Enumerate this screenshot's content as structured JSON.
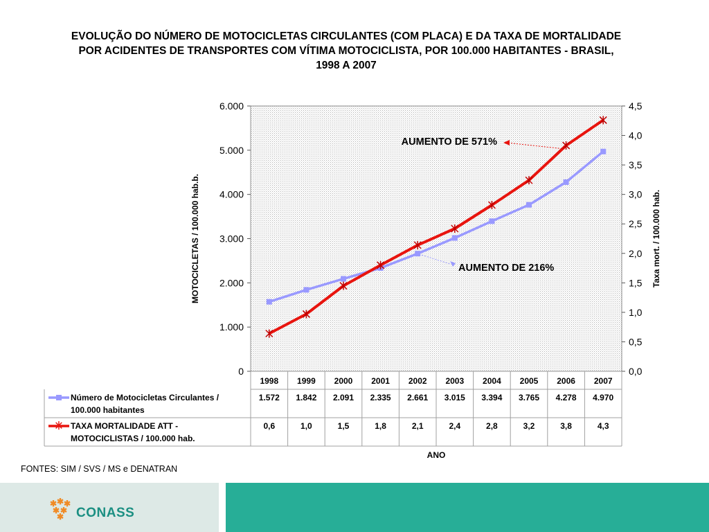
{
  "title": "EVOLUÇÃO DO NÚMERO DE MOTOCICLETAS CIRCULANTES (COM PLACA) E DA TAXA DE MORTALIDADE POR ACIDENTES DE TRANSPORTES COM VÍTIMA MOTOCICLISTA, POR 100.000 HABITANTES - BRASIL, 1998 A 2007",
  "source": "FONTES: SIM / SVS / MS e DENATRAN",
  "logo": {
    "text": "CONASS"
  },
  "colors": {
    "motorcycles": "#9999ff",
    "mortality": "#e8140e",
    "footer_left": "#dde9e6",
    "footer_right": "#27ae97",
    "logo": "#1b8f82",
    "logo_mark": "#f08a24"
  },
  "chart_data": {
    "type": "line",
    "dual_axis": true,
    "grid": false,
    "plot_area_fill": "dotted gray",
    "legend_placement": "data-table",
    "x": [
      "1998",
      "1999",
      "2000",
      "2001",
      "2002",
      "2003",
      "2004",
      "2005",
      "2006",
      "2007"
    ],
    "xlabel": "ANO",
    "ylabel_left": "MOTOCICLETAS / 100.000 hab.b.",
    "ylabel_right": "Taxa mort. / 100.000 hab.",
    "ylim_left": [
      0,
      6000
    ],
    "ylim_right": [
      0,
      4.5
    ],
    "yticks_left": [
      "0",
      "1.000",
      "2.000",
      "3.000",
      "4.000",
      "5.000",
      "6.000"
    ],
    "yticks_right": [
      "0,0",
      "0,5",
      "1,0",
      "1,5",
      "2,0",
      "2,5",
      "3,0",
      "3,5",
      "4,0",
      "4,5"
    ],
    "series": [
      {
        "name": "Número de Motocicletas Circulantes / 100.000 habitantes",
        "name_lines": [
          "Número de Motocicletas Circulantes /",
          "100.000 habitantes"
        ],
        "axis": "left",
        "marker": "square",
        "color": "#9999ff",
        "values": [
          1572,
          1842,
          2091,
          2335,
          2661,
          3015,
          3394,
          3765,
          4278,
          4970
        ],
        "labels": [
          "1.572",
          "1.842",
          "2.091",
          "2.335",
          "2.661",
          "3.015",
          "3.394",
          "3.765",
          "4.278",
          "4.970"
        ]
      },
      {
        "name": "TAXA MORTALIDADE ATT - MOTOCICLISTAS / 100.000 hab.",
        "name_lines": [
          "TAXA MORTALIDADE ATT -",
          "MOTOCICLISTAS / 100.000 hab."
        ],
        "axis": "right",
        "marker": "asterisk",
        "color": "#e8140e",
        "values": [
          0.64,
          0.97,
          1.45,
          1.8,
          2.14,
          2.42,
          2.82,
          3.24,
          3.83,
          4.26
        ],
        "labels": [
          "0,6",
          "1,0",
          "1,5",
          "1,8",
          "2,1",
          "2,4",
          "2,8",
          "3,2",
          "3,8",
          "4,3"
        ]
      }
    ],
    "annotations": [
      {
        "text": "AUMENTO DE 571%",
        "series": 1,
        "point_index": 8
      },
      {
        "text": "AUMENTO DE 216%",
        "series": 0,
        "point_index": 4
      }
    ]
  }
}
